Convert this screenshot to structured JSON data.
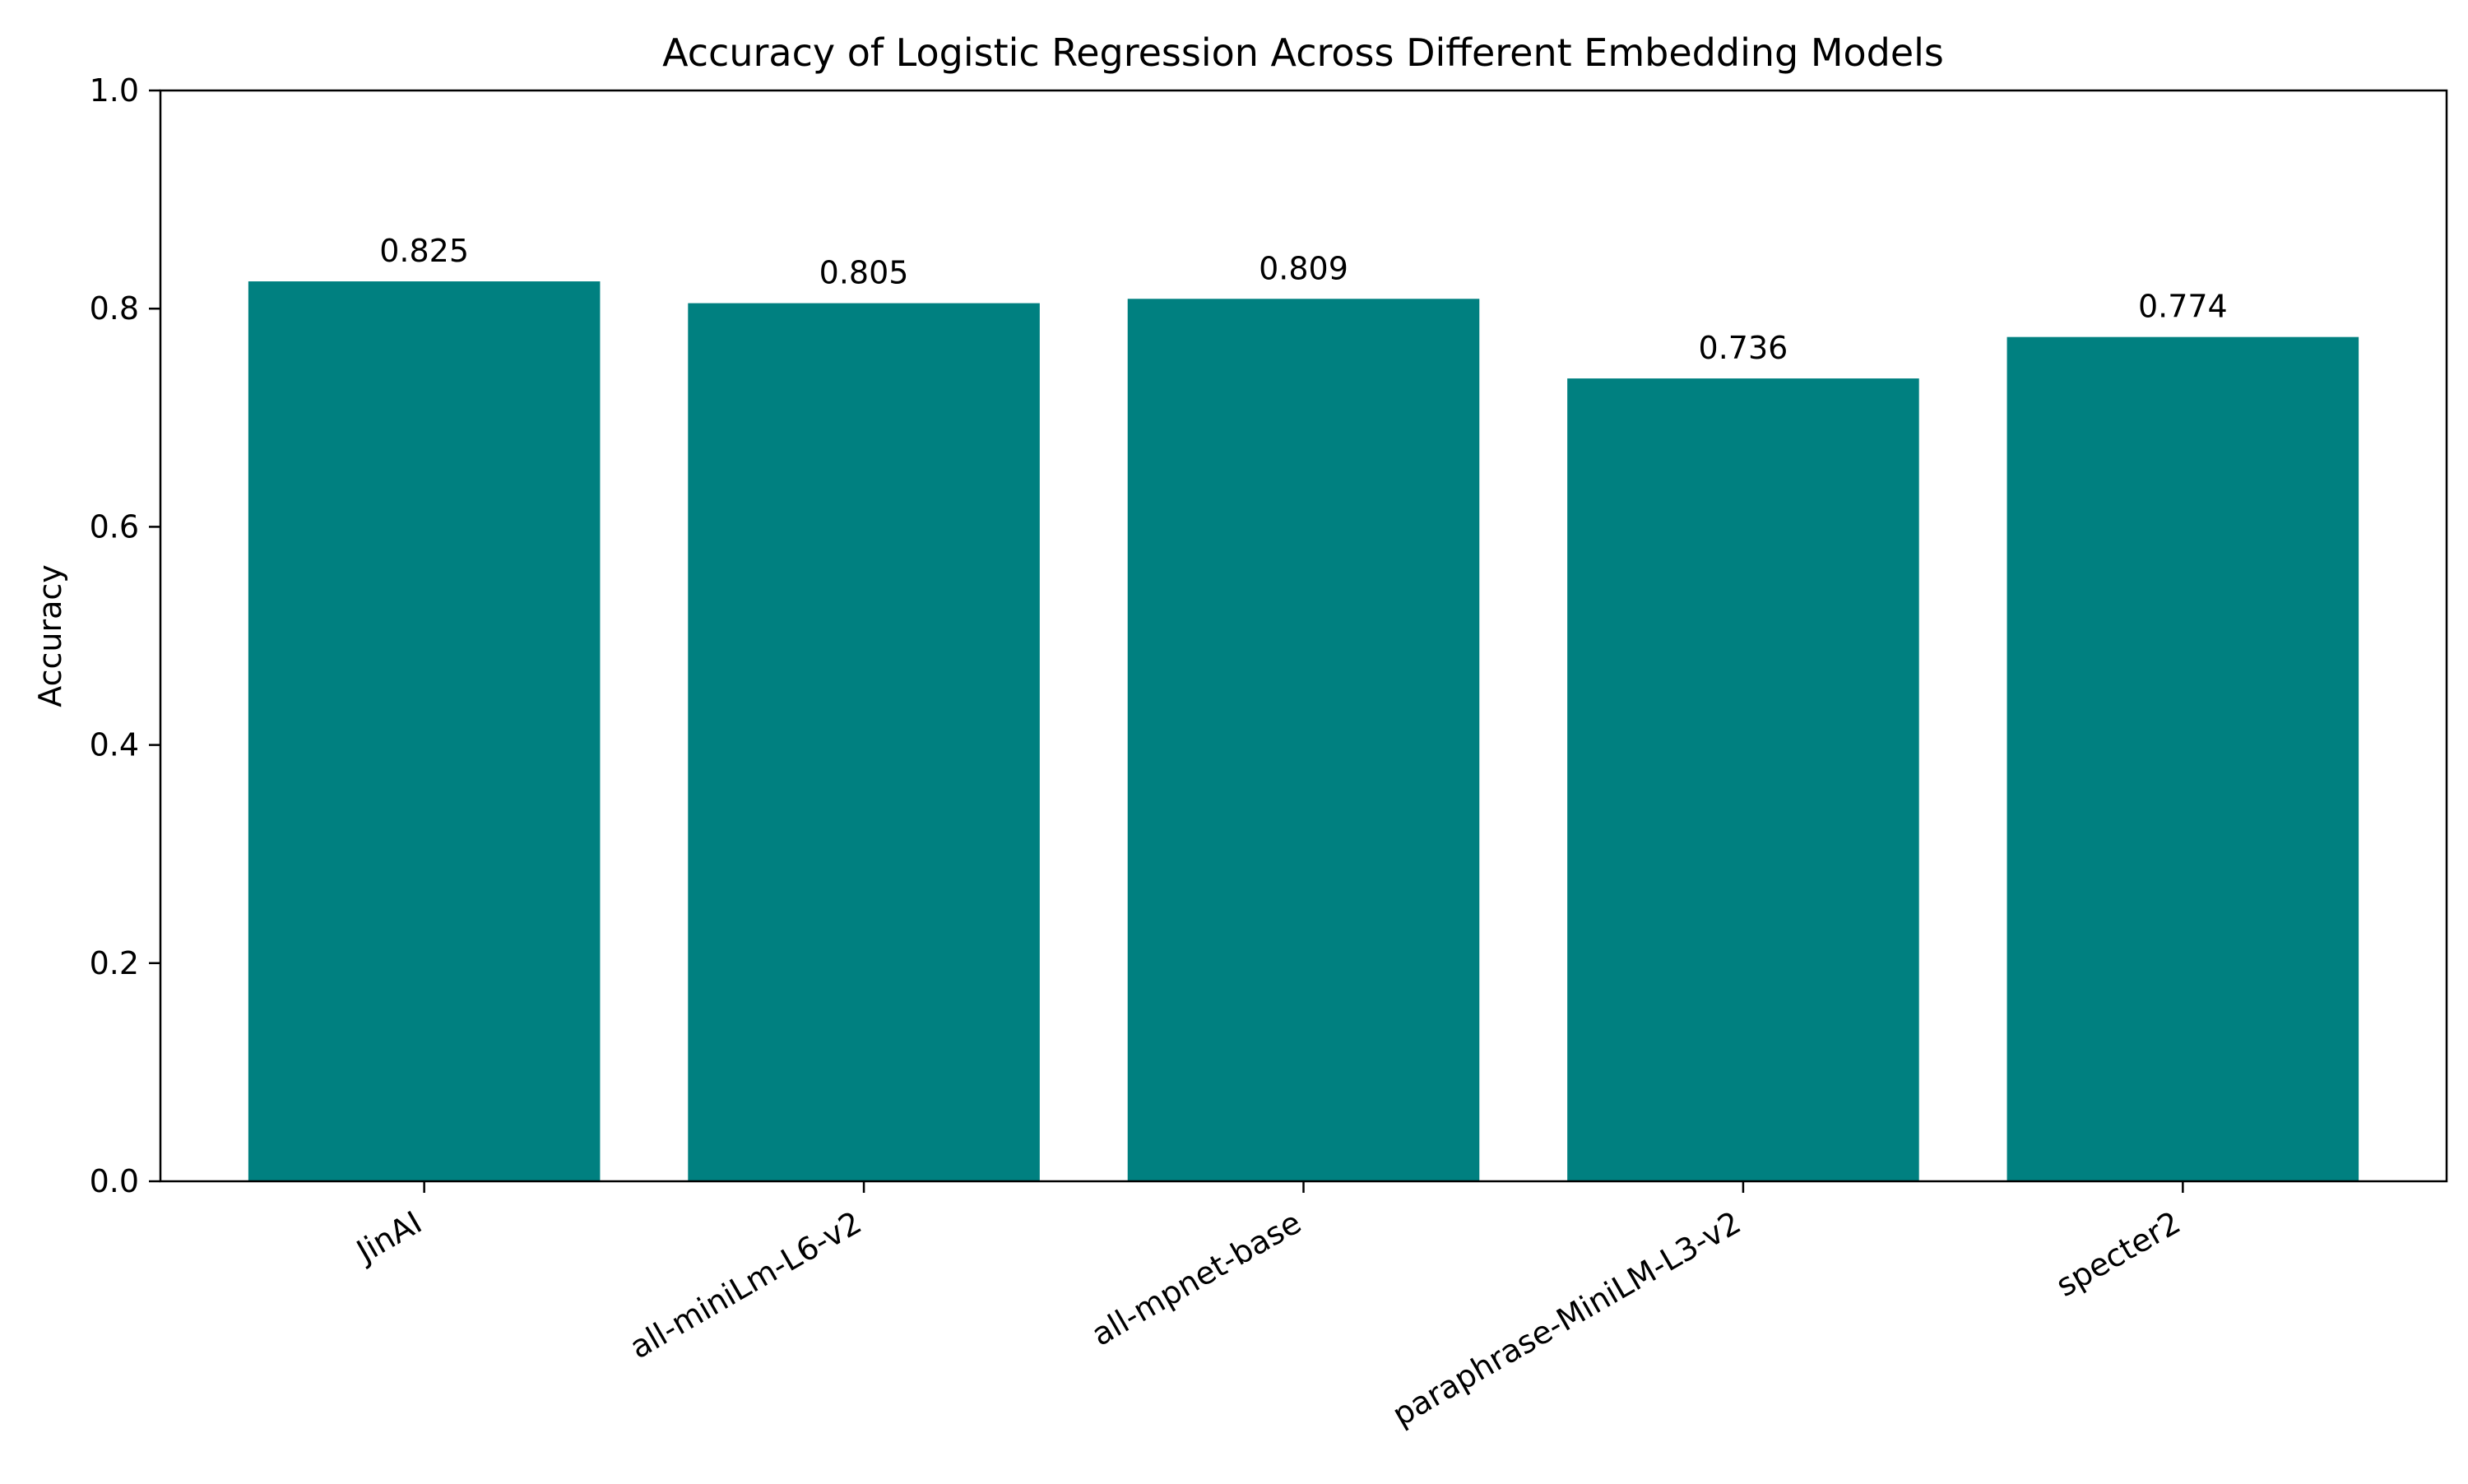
{
  "chart_data": {
    "type": "bar",
    "title": "Accuracy of Logistic Regression Across Different Embedding Models",
    "xlabel": "",
    "ylabel": "Accuracy",
    "categories": [
      "JinAI",
      "all-miniLm-L6-v2",
      "all-mpnet-base",
      "paraphrase-MiniLM-L3-v2",
      "specter2"
    ],
    "values": [
      0.825,
      0.805,
      0.809,
      0.736,
      0.774
    ],
    "data_labels": [
      "0.825",
      "0.805",
      "0.809",
      "0.736",
      "0.774"
    ],
    "ylim": [
      0,
      1.0
    ],
    "yticks": [
      0.0,
      0.2,
      0.4,
      0.6,
      0.8,
      1.0
    ],
    "ytick_labels": [
      "0.0",
      "0.2",
      "0.4",
      "0.6",
      "0.8",
      "1.0"
    ],
    "grid": false,
    "legend": "none",
    "colors": {
      "bar": "#008080"
    }
  }
}
